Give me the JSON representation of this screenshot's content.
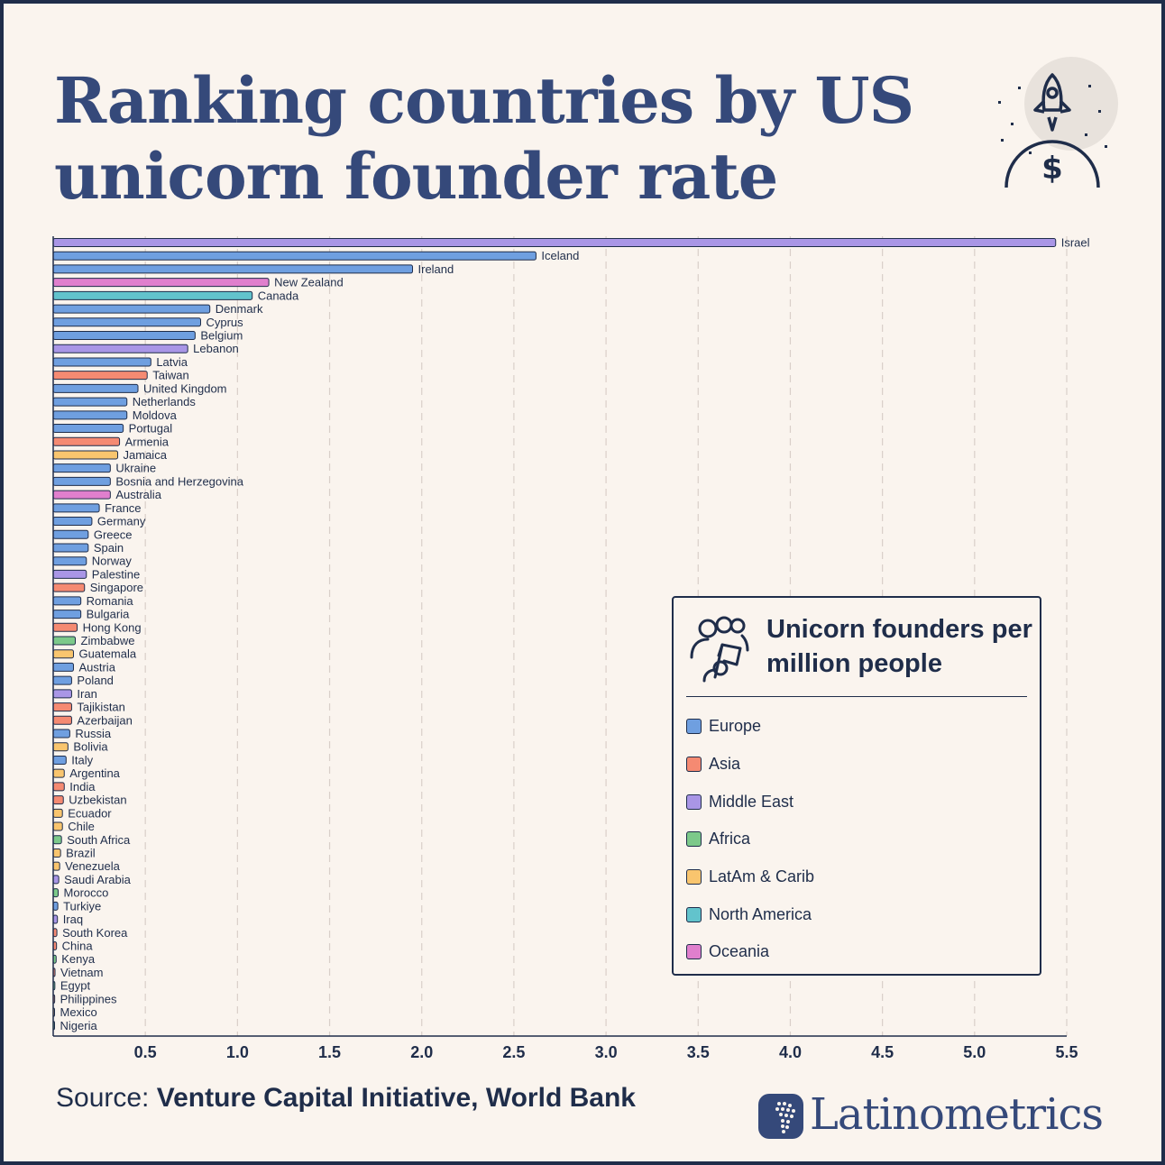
{
  "title": "Ranking countries by US unicorn founder rate",
  "legend": {
    "title": "Unicorn founders per million people",
    "items": [
      {
        "label": "Europe",
        "color": "#6f9fe0"
      },
      {
        "label": "Asia",
        "color": "#f58a72"
      },
      {
        "label": "Middle East",
        "color": "#a996e6"
      },
      {
        "label": "Africa",
        "color": "#7cc98a"
      },
      {
        "label": "LatAm & Carib",
        "color": "#f9c56e"
      },
      {
        "label": "North America",
        "color": "#62c3cc"
      },
      {
        "label": "Oceania",
        "color": "#e07fcd"
      }
    ]
  },
  "source": {
    "prefix": "Source: ",
    "text": "Venture Capital Initiative, World Bank"
  },
  "brand": {
    "name": "Latinometrics"
  },
  "chart_data": {
    "type": "bar",
    "orientation": "horizontal",
    "xlim": [
      0,
      5.5
    ],
    "xticks": [
      "0.5",
      "1.0",
      "1.5",
      "2.0",
      "2.5",
      "3.0",
      "3.5",
      "4.0",
      "4.5",
      "5.0",
      "5.5"
    ],
    "grid": true,
    "legend_position": "bottom-right",
    "bars": [
      {
        "country": "Israel",
        "value": 5.44,
        "region": "Middle East"
      },
      {
        "country": "Iceland",
        "value": 2.62,
        "region": "Europe"
      },
      {
        "country": "Ireland",
        "value": 1.95,
        "region": "Europe"
      },
      {
        "country": "New Zealand",
        "value": 1.17,
        "region": "Oceania"
      },
      {
        "country": "Canada",
        "value": 1.08,
        "region": "North America"
      },
      {
        "country": "Denmark",
        "value": 0.85,
        "region": "Europe"
      },
      {
        "country": "Cyprus",
        "value": 0.8,
        "region": "Europe"
      },
      {
        "country": "Belgium",
        "value": 0.77,
        "region": "Europe"
      },
      {
        "country": "Lebanon",
        "value": 0.73,
        "region": "Middle East"
      },
      {
        "country": "Latvia",
        "value": 0.53,
        "region": "Europe"
      },
      {
        "country": "Taiwan",
        "value": 0.51,
        "region": "Asia"
      },
      {
        "country": "United Kingdom",
        "value": 0.46,
        "region": "Europe"
      },
      {
        "country": "Netherlands",
        "value": 0.4,
        "region": "Europe"
      },
      {
        "country": "Moldova",
        "value": 0.4,
        "region": "Europe"
      },
      {
        "country": "Portugal",
        "value": 0.38,
        "region": "Europe"
      },
      {
        "country": "Armenia",
        "value": 0.36,
        "region": "Asia"
      },
      {
        "country": "Jamaica",
        "value": 0.35,
        "region": "LatAm & Carib"
      },
      {
        "country": "Ukraine",
        "value": 0.31,
        "region": "Europe"
      },
      {
        "country": "Bosnia and Herzegovina",
        "value": 0.31,
        "region": "Europe"
      },
      {
        "country": "Australia",
        "value": 0.31,
        "region": "Oceania"
      },
      {
        "country": "France",
        "value": 0.25,
        "region": "Europe"
      },
      {
        "country": "Germany",
        "value": 0.21,
        "region": "Europe"
      },
      {
        "country": "Greece",
        "value": 0.19,
        "region": "Europe"
      },
      {
        "country": "Spain",
        "value": 0.19,
        "region": "Europe"
      },
      {
        "country": "Norway",
        "value": 0.18,
        "region": "Europe"
      },
      {
        "country": "Palestine",
        "value": 0.18,
        "region": "Middle East"
      },
      {
        "country": "Singapore",
        "value": 0.17,
        "region": "Asia"
      },
      {
        "country": "Romania",
        "value": 0.15,
        "region": "Europe"
      },
      {
        "country": "Bulgaria",
        "value": 0.15,
        "region": "Europe"
      },
      {
        "country": "Hong Kong",
        "value": 0.13,
        "region": "Asia"
      },
      {
        "country": "Zimbabwe",
        "value": 0.12,
        "region": "Africa"
      },
      {
        "country": "Guatemala",
        "value": 0.11,
        "region": "LatAm & Carib"
      },
      {
        "country": "Austria",
        "value": 0.11,
        "region": "Europe"
      },
      {
        "country": "Poland",
        "value": 0.1,
        "region": "Europe"
      },
      {
        "country": "Iran",
        "value": 0.1,
        "region": "Middle East"
      },
      {
        "country": "Tajikistan",
        "value": 0.1,
        "region": "Asia"
      },
      {
        "country": "Azerbaijan",
        "value": 0.1,
        "region": "Asia"
      },
      {
        "country": "Russia",
        "value": 0.09,
        "region": "Europe"
      },
      {
        "country": "Bolivia",
        "value": 0.08,
        "region": "LatAm & Carib"
      },
      {
        "country": "Italy",
        "value": 0.07,
        "region": "Europe"
      },
      {
        "country": "Argentina",
        "value": 0.06,
        "region": "LatAm & Carib"
      },
      {
        "country": "India",
        "value": 0.06,
        "region": "Asia"
      },
      {
        "country": "Uzbekistan",
        "value": 0.055,
        "region": "Asia"
      },
      {
        "country": "Ecuador",
        "value": 0.05,
        "region": "LatAm & Carib"
      },
      {
        "country": "Chile",
        "value": 0.05,
        "region": "LatAm & Carib"
      },
      {
        "country": "South Africa",
        "value": 0.045,
        "region": "Africa"
      },
      {
        "country": "Brazil",
        "value": 0.04,
        "region": "LatAm & Carib"
      },
      {
        "country": "Venezuela",
        "value": 0.035,
        "region": "LatAm & Carib"
      },
      {
        "country": "Saudi Arabia",
        "value": 0.03,
        "region": "Middle East"
      },
      {
        "country": "Morocco",
        "value": 0.027,
        "region": "Africa"
      },
      {
        "country": "Turkiye",
        "value": 0.025,
        "region": "Europe"
      },
      {
        "country": "Iraq",
        "value": 0.023,
        "region": "Middle East"
      },
      {
        "country": "South Korea",
        "value": 0.02,
        "region": "Asia"
      },
      {
        "country": "China",
        "value": 0.018,
        "region": "Asia"
      },
      {
        "country": "Kenya",
        "value": 0.016,
        "region": "Africa"
      },
      {
        "country": "Vietnam",
        "value": 0.01,
        "region": "Asia"
      },
      {
        "country": "Egypt",
        "value": 0.009,
        "region": "Africa"
      },
      {
        "country": "Philippines",
        "value": 0.008,
        "region": "Asia"
      },
      {
        "country": "Mexico",
        "value": 0.007,
        "region": "LatAm & Carib"
      },
      {
        "country": "Nigeria",
        "value": 0.005,
        "region": "Africa"
      }
    ]
  }
}
